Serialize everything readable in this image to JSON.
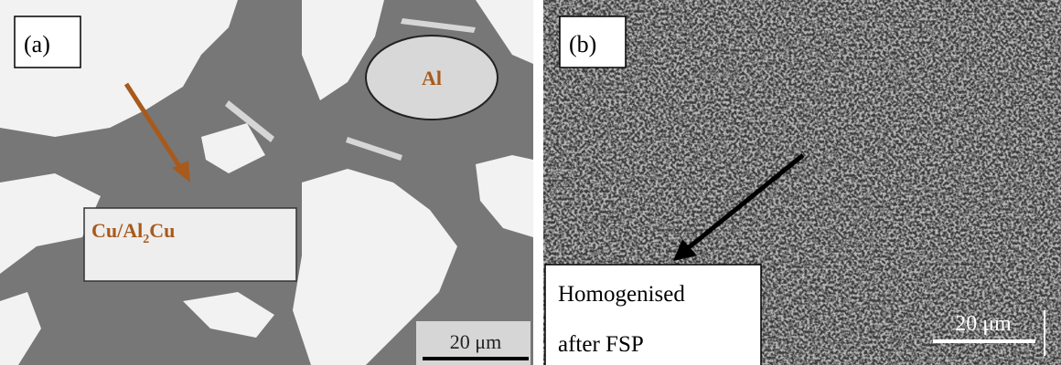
{
  "panels": [
    {
      "label": "(a)",
      "phase_label": "Al",
      "annotation": [
        {
          "text": "Cu/Al"
        },
        {
          "sub": "2"
        },
        {
          "text": "Cu"
        }
      ],
      "scale_bar": "20 μm"
    },
    {
      "label": "(b)",
      "annotation_lines": [
        "Homogenised",
        "after FSP"
      ],
      "scale_bar": "20 μm"
    }
  ]
}
